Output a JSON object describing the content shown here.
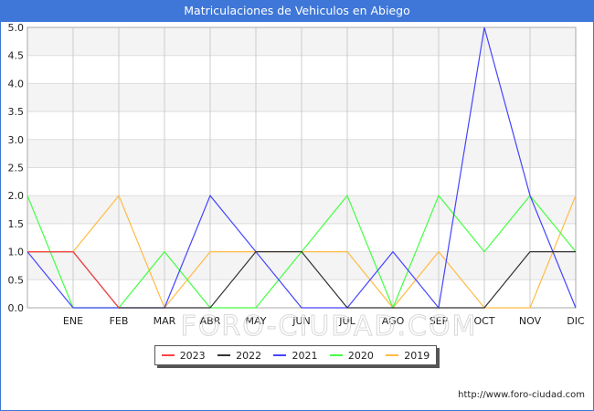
{
  "header": {
    "title": "Matriculaciones de Vehiculos en Abiego"
  },
  "footer": {
    "url": "http://www.foro-ciudad.com"
  },
  "watermark": "FORO-CIUDAD.COM",
  "chart_data": {
    "type": "line",
    "title": "Matriculaciones de Vehiculos en Abiego",
    "xlabel": "",
    "ylabel": "",
    "categories": [
      "",
      "ENE",
      "FEB",
      "MAR",
      "ABR",
      "MAY",
      "JUN",
      "JUL",
      "AGO",
      "SEP",
      "OCT",
      "NOV",
      "DIC"
    ],
    "ylim": [
      0,
      5
    ],
    "yticks": [
      "0.0",
      "0.5",
      "1.0",
      "1.5",
      "2.0",
      "2.5",
      "3.0",
      "3.5",
      "4.0",
      "4.5",
      "5.0"
    ],
    "grid": true,
    "legend_position": "bottom",
    "series": [
      {
        "name": "2023",
        "color": "#ff4444",
        "values": [
          1,
          1,
          0,
          null,
          null,
          null,
          null,
          null,
          null,
          null,
          null,
          null,
          null
        ]
      },
      {
        "name": "2022",
        "color": "#333333",
        "values": [
          1,
          1,
          0,
          0,
          0,
          1,
          1,
          0,
          0,
          0,
          0,
          1,
          1
        ]
      },
      {
        "name": "2021",
        "color": "#4444ff",
        "values": [
          1,
          0,
          0,
          0,
          2,
          1,
          0,
          0,
          1,
          0,
          5,
          2,
          0
        ]
      },
      {
        "name": "2020",
        "color": "#44ff44",
        "values": [
          2,
          0,
          0,
          1,
          0,
          0,
          1,
          2,
          0,
          2,
          1,
          2,
          1
        ]
      },
      {
        "name": "2019",
        "color": "#ffbb44",
        "values": [
          1,
          1,
          2,
          0,
          1,
          1,
          1,
          1,
          0,
          1,
          0,
          0,
          2
        ]
      }
    ]
  }
}
